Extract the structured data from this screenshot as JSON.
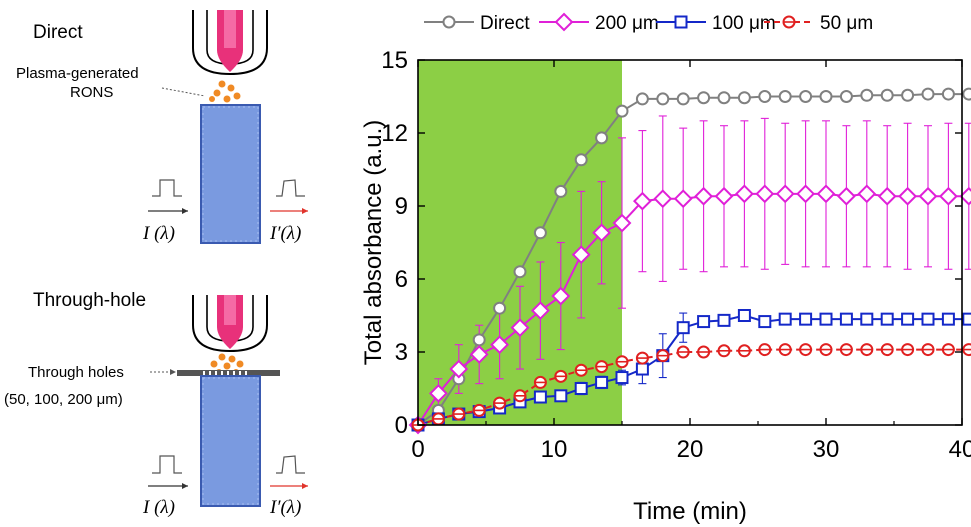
{
  "schematic": {
    "direct_label": "Direct",
    "rons_label_line1": "Plasma-generated",
    "rons_label_line2": "RONS",
    "intensity_in": "I (λ)",
    "intensity_out": "I′(λ)",
    "throughhole_label": "Through-hole",
    "holes_label_line1": "Through holes",
    "holes_label_line2": "(50, 100, 200 μm)",
    "colors": {
      "plasma": "#e8317a",
      "droplets": "#f08a24",
      "cuvette": "#6a8fd6",
      "arrow_out": "#e0342c",
      "plate": "#555555"
    }
  },
  "chart_data": {
    "type": "line",
    "xlabel": "Time (min)",
    "ylabel": "Total absorbance (a.u.)",
    "xlim": [
      0,
      40
    ],
    "ylim": [
      0,
      15
    ],
    "xticks": [
      0,
      10,
      20,
      30,
      40
    ],
    "yticks": [
      0,
      3,
      6,
      9,
      12,
      15
    ],
    "xtick_labels": [
      "0",
      "10",
      "20",
      "30",
      "40"
    ],
    "ytick_labels": [
      "0",
      "3",
      "6",
      "9",
      "12",
      "15"
    ],
    "shaded_region": {
      "x": [
        0,
        15
      ],
      "color": "#8ccf45"
    },
    "legend_position": "top",
    "series": [
      {
        "name": "Direct",
        "color": "#808080",
        "marker": "circle",
        "dashed": false,
        "x": [
          0,
          1.5,
          3,
          4.5,
          6,
          7.5,
          9,
          10.5,
          12,
          13.5,
          15,
          16.5,
          18,
          19.5,
          21,
          22.5,
          24,
          25.5,
          27,
          28.5,
          30,
          31.5,
          33,
          34.5,
          36,
          37.5,
          39,
          40.5
        ],
        "y": [
          0,
          0.6,
          1.9,
          3.5,
          4.8,
          6.3,
          7.9,
          9.6,
          10.9,
          11.8,
          12.9,
          13.4,
          13.4,
          13.4,
          13.45,
          13.45,
          13.45,
          13.5,
          13.5,
          13.5,
          13.5,
          13.5,
          13.55,
          13.55,
          13.55,
          13.6,
          13.6,
          13.6
        ]
      },
      {
        "name": "200 μm",
        "color": "#e020d8",
        "marker": "diamond",
        "dashed": false,
        "x": [
          0,
          1.5,
          3,
          4.5,
          6,
          7.5,
          9,
          10.5,
          12,
          13.5,
          15,
          16.5,
          18,
          19.5,
          21,
          22.5,
          24,
          25.5,
          27,
          28.5,
          30,
          31.5,
          33,
          34.5,
          36,
          37.5,
          39,
          40.5
        ],
        "y": [
          0,
          1.3,
          2.3,
          2.9,
          3.3,
          4.0,
          4.7,
          5.3,
          7.0,
          7.9,
          8.3,
          9.2,
          9.3,
          9.3,
          9.4,
          9.4,
          9.5,
          9.5,
          9.5,
          9.5,
          9.5,
          9.4,
          9.5,
          9.4,
          9.4,
          9.4,
          9.4,
          9.4
        ],
        "error": [
          0,
          0.6,
          1.0,
          1.2,
          1.4,
          1.7,
          2.0,
          2.2,
          2.6,
          2.1,
          3.5,
          2.9,
          3.4,
          2.9,
          3.1,
          2.9,
          3.0,
          3.1,
          2.9,
          3.0,
          3.0,
          2.9,
          3.0,
          2.9,
          3.0,
          2.9,
          3.0,
          3.0
        ]
      },
      {
        "name": "100 μm",
        "color": "#1428c8",
        "marker": "square",
        "dashed": false,
        "x": [
          0,
          1.5,
          3,
          4.5,
          6,
          7.5,
          9,
          10.5,
          12,
          13.5,
          15,
          16.5,
          18,
          19.5,
          21,
          22.5,
          24,
          25.5,
          27,
          28.5,
          30,
          31.5,
          33,
          34.5,
          36,
          37.5,
          39,
          40.5
        ],
        "y": [
          0,
          0.25,
          0.45,
          0.55,
          0.7,
          0.95,
          1.15,
          1.2,
          1.5,
          1.75,
          1.95,
          2.3,
          2.85,
          4.0,
          4.25,
          4.3,
          4.5,
          4.25,
          4.35,
          4.35,
          4.35,
          4.35,
          4.35,
          4.35,
          4.35,
          4.35,
          4.35,
          4.35
        ],
        "error": [
          0,
          0.1,
          0.1,
          0.1,
          0.1,
          0.15,
          0.2,
          0.2,
          0.25,
          0.25,
          0.3,
          0.6,
          0.9,
          0.6,
          0.2,
          0.15,
          0.1,
          0.1,
          0.1,
          0.1,
          0.1,
          0.1,
          0.1,
          0.1,
          0.1,
          0.1,
          0.1,
          0.1
        ]
      },
      {
        "name": "50 μm",
        "color": "#e02020",
        "marker": "circle-bar",
        "dashed": true,
        "x": [
          0,
          1.5,
          3,
          4.5,
          6,
          7.5,
          9,
          10.5,
          12,
          13.5,
          15,
          16.5,
          18,
          19.5,
          21,
          22.5,
          24,
          25.5,
          27,
          28.5,
          30,
          31.5,
          33,
          34.5,
          36,
          37.5,
          39,
          40.5
        ],
        "y": [
          0,
          0.25,
          0.45,
          0.6,
          0.9,
          1.2,
          1.75,
          2.0,
          2.25,
          2.4,
          2.6,
          2.75,
          2.85,
          3.0,
          3.0,
          3.05,
          3.05,
          3.1,
          3.1,
          3.1,
          3.1,
          3.1,
          3.1,
          3.1,
          3.1,
          3.1,
          3.1,
          3.1
        ]
      }
    ]
  }
}
